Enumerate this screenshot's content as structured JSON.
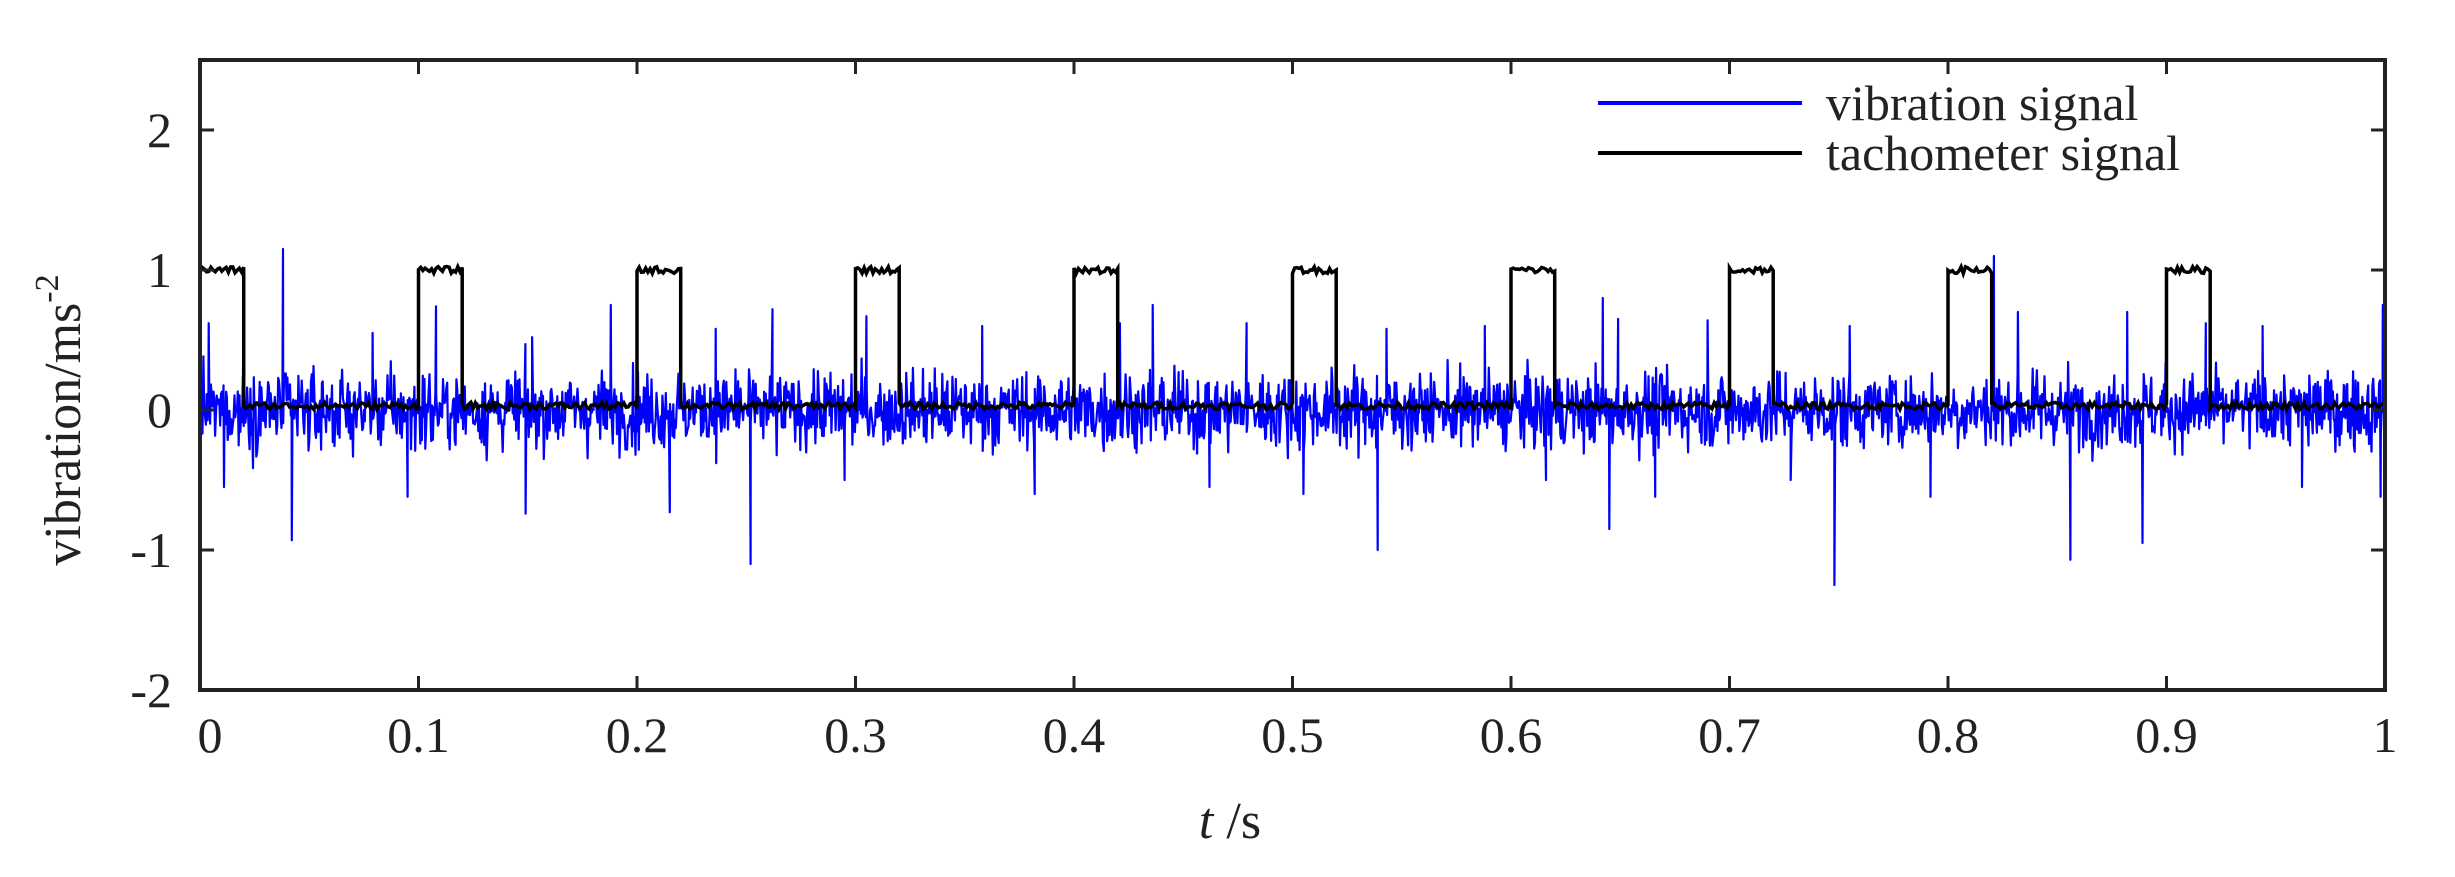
{
  "chart_data": {
    "type": "line",
    "title": "",
    "xlabel": {
      "italic_var": "t",
      "unit": " /s"
    },
    "ylabel": {
      "base": "vibration/ms",
      "superscript": "-2"
    },
    "xlim": [
      0,
      1
    ],
    "ylim": [
      -2,
      2.5
    ],
    "x_ticks": [
      0,
      0.1,
      0.2,
      0.3,
      0.4,
      0.5,
      0.6,
      0.7,
      0.8,
      0.9,
      1
    ],
    "x_tick_labels": [
      "0",
      "0.1",
      "0.2",
      "0.3",
      "0.4",
      "0.5",
      "0.6",
      "0.7",
      "0.8",
      "0.9",
      "1"
    ],
    "y_ticks": [
      2,
      1,
      0,
      -1,
      -2
    ],
    "y_tick_labels": [
      "2",
      "1",
      "0",
      "-1",
      "-2"
    ],
    "grid": false,
    "legend_position": "top-right",
    "series": [
      {
        "name": "vibration signal",
        "color": "#0000ff",
        "kind": "noise",
        "baseline": 0,
        "typical_amplitude": 0.45,
        "peaks": [
          [
            0.004,
            0.62
          ],
          [
            0.011,
            -0.55
          ],
          [
            0.038,
            1.15
          ],
          [
            0.042,
            -0.93
          ],
          [
            0.079,
            0.55
          ],
          [
            0.095,
            -0.62
          ],
          [
            0.108,
            0.74
          ],
          [
            0.149,
            -0.74
          ],
          [
            0.152,
            0.52
          ],
          [
            0.188,
            0.75
          ],
          [
            0.215,
            -0.73
          ],
          [
            0.236,
            0.58
          ],
          [
            0.252,
            -1.1
          ],
          [
            0.262,
            0.72
          ],
          [
            0.295,
            -0.5
          ],
          [
            0.305,
            0.67
          ],
          [
            0.358,
            0.6
          ],
          [
            0.382,
            -0.6
          ],
          [
            0.421,
            0.62
          ],
          [
            0.436,
            0.75
          ],
          [
            0.462,
            -0.55
          ],
          [
            0.479,
            0.62
          ],
          [
            0.505,
            -0.6
          ],
          [
            0.539,
            -1.0
          ],
          [
            0.543,
            0.58
          ],
          [
            0.588,
            0.6
          ],
          [
            0.616,
            -0.5
          ],
          [
            0.642,
            0.8
          ],
          [
            0.645,
            -0.85
          ],
          [
            0.649,
            0.65
          ],
          [
            0.666,
            -0.62
          ],
          [
            0.69,
            0.64
          ],
          [
            0.72,
            0.6
          ],
          [
            0.728,
            -0.5
          ],
          [
            0.748,
            -1.25
          ],
          [
            0.755,
            0.6
          ],
          [
            0.792,
            -0.62
          ],
          [
            0.821,
            1.1
          ],
          [
            0.832,
            0.7
          ],
          [
            0.856,
            -1.07
          ],
          [
            0.882,
            0.7
          ],
          [
            0.889,
            -0.95
          ],
          [
            0.918,
            0.62
          ],
          [
            0.944,
            0.6
          ],
          [
            0.962,
            -0.55
          ],
          [
            0.998,
            -0.62
          ],
          [
            0.999,
            0.75
          ]
        ]
      },
      {
        "name": "tachometer signal",
        "color": "#000000",
        "kind": "pulse-train",
        "low": 0.03,
        "high": 1.0,
        "pulse_width": 0.02,
        "pulse_starts": [
          0,
          0.1,
          0.2,
          0.3,
          0.4,
          0.5,
          0.6,
          0.7,
          0.8,
          0.9
        ]
      }
    ]
  }
}
